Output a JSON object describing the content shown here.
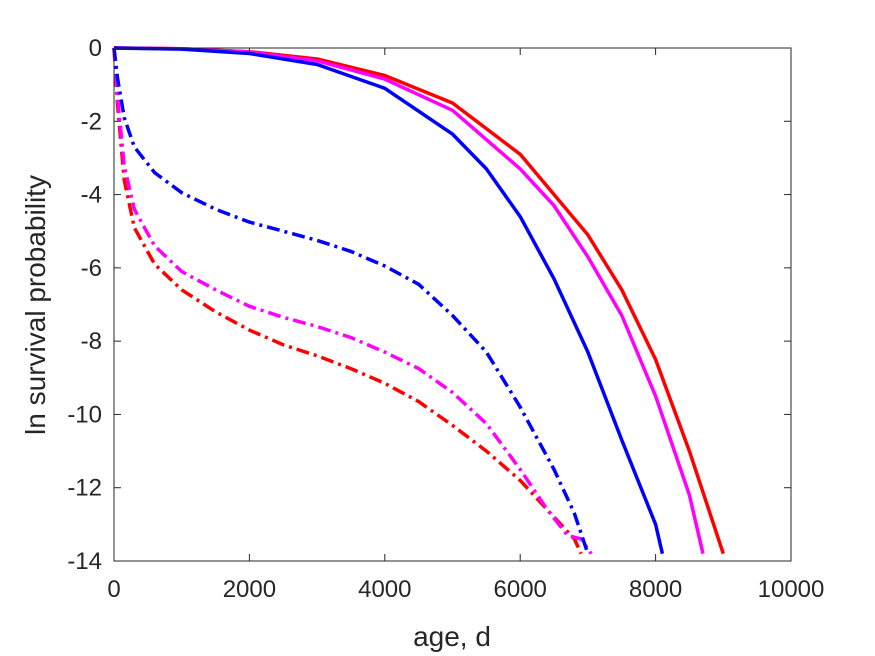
{
  "chart_data": {
    "type": "line",
    "title": "",
    "xlabel": "age, d",
    "ylabel": "ln survival probability",
    "xlim": [
      0,
      10000
    ],
    "ylim": [
      -14,
      0
    ],
    "xticks": [
      0,
      2000,
      4000,
      6000,
      8000,
      10000
    ],
    "yticks": [
      0,
      -2,
      -4,
      -6,
      -8,
      -10,
      -12,
      -14
    ],
    "xtick_labels": [
      "0",
      "2000",
      "4000",
      "6000",
      "8000",
      "10000"
    ],
    "ytick_labels": [
      "0",
      "-2",
      "-4",
      "-6",
      "-8",
      "-10",
      "-12",
      "-14"
    ],
    "grid": false,
    "legend": "none",
    "series": [
      {
        "color": "#ff0000",
        "style": "solid",
        "x": [
          0,
          1000,
          2000,
          3000,
          4000,
          5000,
          6000,
          7000,
          7500,
          8000,
          8500,
          9000
        ],
        "y": [
          0,
          -0.02,
          -0.1,
          -0.3,
          -0.75,
          -1.5,
          -2.9,
          -5.1,
          -6.6,
          -8.5,
          -11.0,
          -13.8
        ]
      },
      {
        "color": "#ff00ff",
        "style": "solid",
        "x": [
          0,
          1000,
          2000,
          3000,
          4000,
          5000,
          6000,
          6500,
          7000,
          7500,
          8000,
          8500,
          8700
        ],
        "y": [
          0,
          -0.02,
          -0.11,
          -0.35,
          -0.85,
          -1.7,
          -3.3,
          -4.3,
          -5.7,
          -7.3,
          -9.5,
          -12.2,
          -13.8
        ]
      },
      {
        "color": "#0000ff",
        "style": "solid",
        "x": [
          0,
          1000,
          2000,
          3000,
          4000,
          5000,
          5500,
          6000,
          6500,
          7000,
          7500,
          8000,
          8100
        ],
        "y": [
          0,
          -0.03,
          -0.15,
          -0.45,
          -1.1,
          -2.35,
          -3.3,
          -4.6,
          -6.3,
          -8.3,
          -10.7,
          -13.0,
          -13.8
        ]
      },
      {
        "color": "#ff0000",
        "style": "dashdot",
        "x": [
          0,
          50,
          150,
          300,
          600,
          1000,
          1500,
          2000,
          2500,
          3000,
          3500,
          4000,
          4500,
          5000,
          5500,
          6000,
          6500,
          6800,
          6900
        ],
        "y": [
          0,
          -1.5,
          -3.6,
          -4.9,
          -5.9,
          -6.6,
          -7.2,
          -7.7,
          -8.1,
          -8.4,
          -8.75,
          -9.15,
          -9.65,
          -10.3,
          -11.0,
          -11.8,
          -12.8,
          -13.4,
          -13.8
        ]
      },
      {
        "color": "#ff00ff",
        "style": "dashdot",
        "x": [
          0,
          50,
          150,
          300,
          600,
          1000,
          1500,
          2000,
          2500,
          3000,
          3500,
          4000,
          4500,
          5000,
          5500,
          6000,
          6400,
          6700,
          6900,
          7050
        ],
        "y": [
          0,
          -1.3,
          -3.2,
          -4.4,
          -5.4,
          -6.1,
          -6.6,
          -7.05,
          -7.35,
          -7.6,
          -7.9,
          -8.3,
          -8.75,
          -9.4,
          -10.25,
          -11.5,
          -12.6,
          -13.3,
          -13.4,
          -13.8
        ]
      },
      {
        "color": "#0000ff",
        "style": "dashdot",
        "x": [
          0,
          50,
          150,
          300,
          600,
          1000,
          1500,
          2000,
          2500,
          3000,
          3500,
          4000,
          4500,
          5000,
          5500,
          6000,
          6500,
          6800,
          7000
        ],
        "y": [
          0,
          -0.8,
          -1.9,
          -2.7,
          -3.4,
          -3.95,
          -4.4,
          -4.75,
          -5.0,
          -5.25,
          -5.55,
          -5.95,
          -6.45,
          -7.3,
          -8.3,
          -9.8,
          -11.5,
          -12.7,
          -13.8
        ]
      }
    ]
  }
}
